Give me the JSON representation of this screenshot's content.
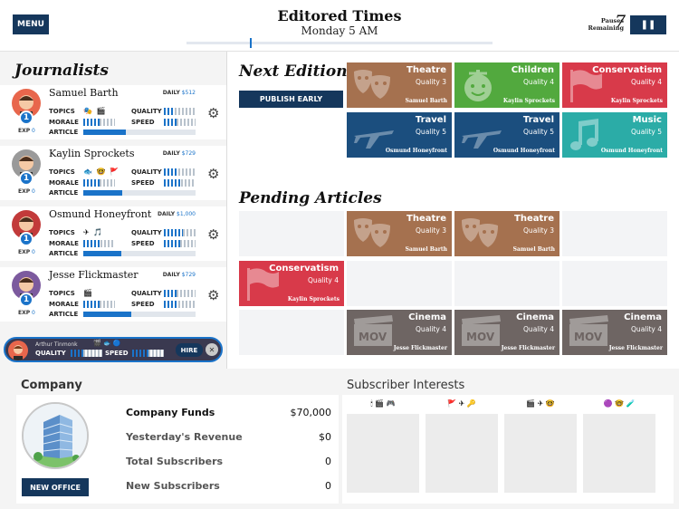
{
  "header": {
    "menu_label": "MENU",
    "paper_title": "Editored Times",
    "time": "Monday  5 AM",
    "pauses_label_1": "Pauses",
    "pauses_label_2": "Remaining",
    "pauses_count": "7",
    "pause_icon": "❚❚"
  },
  "journalists": {
    "heading": "Journalists",
    "labels": {
      "topics": "TOPICS",
      "morale": "MORALE",
      "article": "ARTICLE",
      "quality": "QUALITY",
      "speed": "SPEED",
      "exp": "EXP",
      "daily": "DAILY"
    },
    "items": [
      {
        "name": "Samuel Barth",
        "daily": "$512",
        "level": "1",
        "exp": "0",
        "topics": "🎭 🎬",
        "quality": 0.35,
        "morale": 0.5,
        "speed": 0.4,
        "article": 0.38,
        "color": "#e8664c"
      },
      {
        "name": "Kaylin Sprockets",
        "daily": "$729",
        "level": "1",
        "exp": "0",
        "topics": "🐟 🤓 🚩",
        "quality": 0.45,
        "morale": 0.5,
        "speed": 0.55,
        "article": 0.35,
        "color": "#9a9a9a"
      },
      {
        "name": "Osmund Honeyfront",
        "daily": "$1,000",
        "level": "1",
        "exp": "0",
        "topics": "✈ 🎵",
        "quality": 0.6,
        "morale": 0.55,
        "speed": 0.5,
        "article": 0.34,
        "color": "#c23a3a"
      },
      {
        "name": "Jesse Flickmaster",
        "daily": "$729",
        "level": "1",
        "exp": "0",
        "topics": "🎬",
        "quality": 0.4,
        "morale": 0.5,
        "speed": 0.45,
        "article": 0.43,
        "color": "#7c5a9e"
      }
    ],
    "applicant": {
      "name": "Arthur Tinmonk",
      "topics": "🎬 🐟 🔵",
      "quality_label": "QUALITY",
      "speed_label": "SPEED",
      "quality": 0.4,
      "speed": 0.5,
      "hire_label": "HIRE",
      "dismiss": "✕"
    }
  },
  "next_edition": {
    "heading": "Next Edition",
    "publish_label": "PUBLISH EARLY",
    "tiles": [
      {
        "title": "Theatre",
        "quality": "Quality 3",
        "author": "Samuel Barth",
        "color": "#a5714f",
        "icon": "masks-icon"
      },
      {
        "title": "Children",
        "quality": "Quality 4",
        "author": "Kaylin Sprockets",
        "color": "#52a93e",
        "icon": "kid-icon"
      },
      {
        "title": "Conservatism",
        "quality": "Quality 4",
        "author": "Kaylin Sprockets",
        "color": "#d83a4a",
        "icon": "flag-icon"
      },
      {
        "title": "Travel",
        "quality": "Quality 5",
        "author": "Osmund Honeyfront",
        "color": "#1b4e7e",
        "icon": "plane-icon"
      },
      {
        "title": "Travel",
        "quality": "Quality 5",
        "author": "Osmund Honeyfront",
        "color": "#1b4e7e",
        "icon": "plane-icon"
      },
      {
        "title": "Music",
        "quality": "Quality 5",
        "author": "Osmund Honeyfront",
        "color": "#2baca7",
        "icon": "music-icon"
      }
    ]
  },
  "pending": {
    "heading": "Pending Articles",
    "tiles": [
      {
        "title": "Theatre",
        "quality": "Quality 3",
        "author": "Samuel Barth",
        "color": "#a5714f",
        "icon": "masks-icon"
      },
      {
        "title": "Theatre",
        "quality": "Quality 3",
        "author": "Samuel Barth",
        "color": "#a5714f",
        "icon": "masks-icon"
      },
      {
        "title": "Conservatism",
        "quality": "Quality 4",
        "author": "Kaylin Sprockets",
        "color": "#d83a4a",
        "icon": "flag-icon"
      },
      {
        "title": "Cinema",
        "quality": "Quality 4",
        "author": "Jesse Flickmaster",
        "color": "#6e6563",
        "icon": "film-icon"
      },
      {
        "title": "Cinema",
        "quality": "Quality 4",
        "author": "Jesse Flickmaster",
        "color": "#6e6563",
        "icon": "film-icon"
      },
      {
        "title": "Cinema",
        "quality": "Quality 4",
        "author": "Jesse Flickmaster",
        "color": "#6e6563",
        "icon": "film-icon"
      }
    ]
  },
  "company": {
    "heading": "Company",
    "new_office_label": "NEW OFFICE",
    "rows": [
      {
        "label": "Company Funds",
        "value": "$70,000"
      },
      {
        "label": "Yesterday's Revenue",
        "value": "$0"
      },
      {
        "label": "Total Subscribers",
        "value": "0"
      },
      {
        "label": "New Subscribers",
        "value": "0"
      }
    ]
  },
  "subscriber_interests": {
    "heading": "Subscriber Interests",
    "columns": [
      "🕯 🎬 🎮",
      "🚩 ✈ 🔑",
      "🎬 ✈ 🤓",
      "🟣 🤓 🧪"
    ]
  },
  "colors": {
    "navy": "#15375c",
    "accent": "#1a73c9",
    "theatre": "#a5714f",
    "children": "#52a93e",
    "conservatism": "#d83a4a",
    "travel": "#1b4e7e",
    "music": "#2baca7",
    "cinema": "#6e6563"
  }
}
